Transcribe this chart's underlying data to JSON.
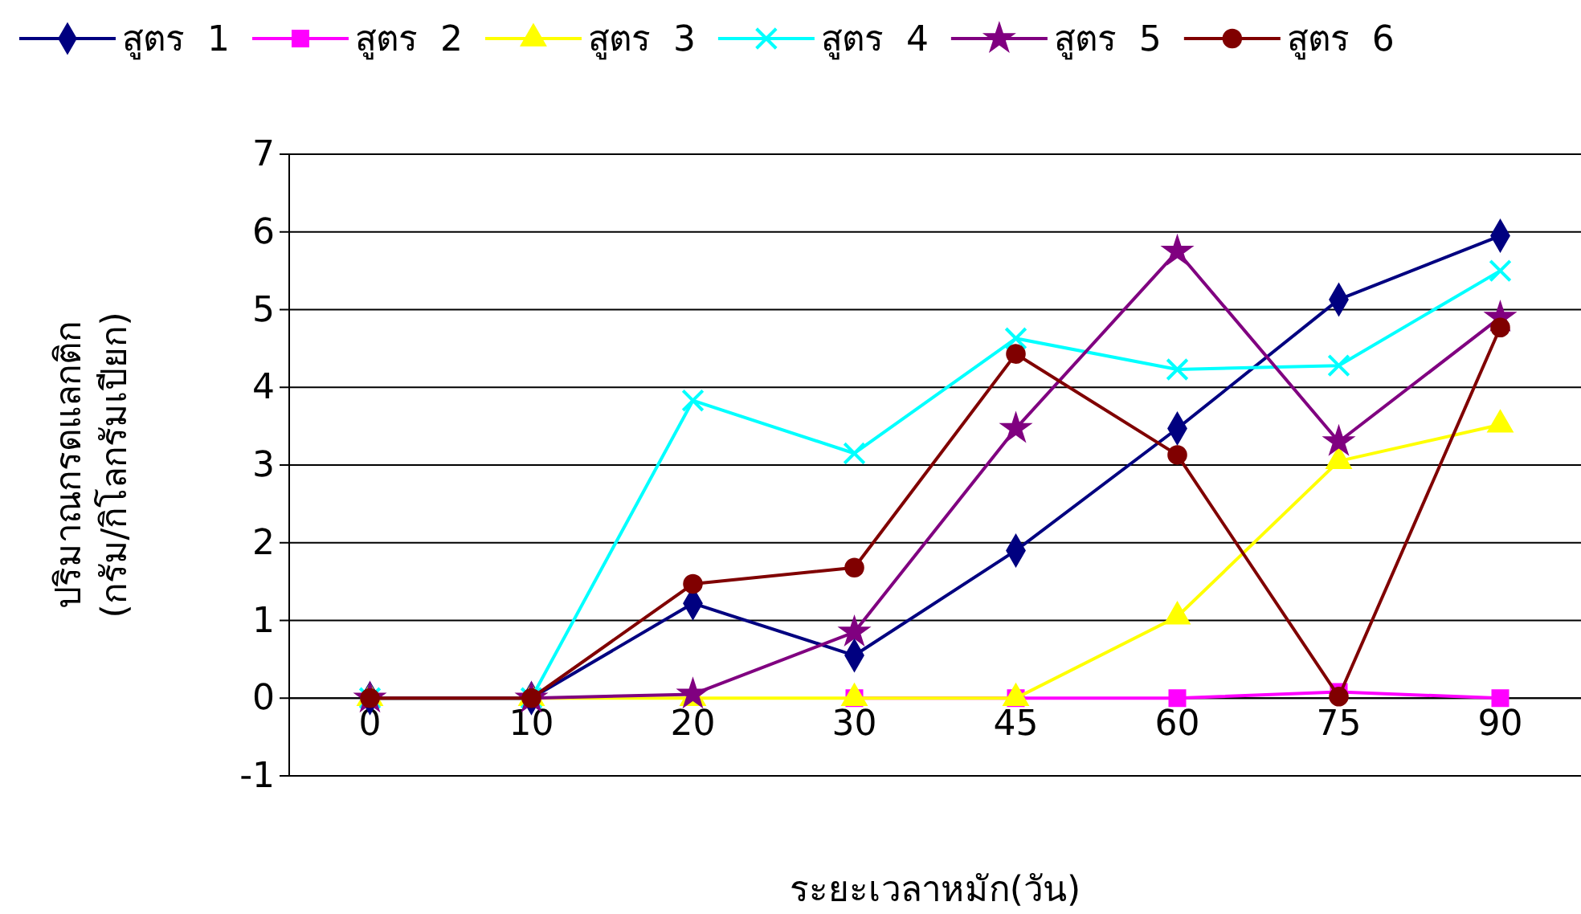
{
  "chart_data": {
    "type": "line",
    "xlabel": "ระยะเวลาหมัก(วัน)",
    "ylabel": "ปริมาณกรดแลกติก\n(กรัม/กิโลกรัมเปียก)",
    "categories": [
      "0",
      "10",
      "20",
      "30",
      "45",
      "60",
      "75",
      "90"
    ],
    "ylim": [
      -1,
      7
    ],
    "yticks": [
      -1,
      0,
      1,
      2,
      3,
      4,
      5,
      6,
      7
    ],
    "grid": "y",
    "legend": "top",
    "series": [
      {
        "name": "สูตร  1",
        "color": "#000080",
        "marker": "diamond",
        "values": [
          0,
          0,
          1.22,
          0.55,
          1.9,
          3.47,
          5.13,
          5.95
        ]
      },
      {
        "name": "สูตร  2",
        "color": "#ff00ff",
        "marker": "square",
        "values": [
          null,
          null,
          null,
          0,
          0,
          0,
          0.08,
          0
        ]
      },
      {
        "name": "สูตร  3",
        "color": "#ffff00",
        "marker": "triangle",
        "values": [
          0,
          0,
          0,
          0,
          0,
          1.05,
          3.05,
          3.52
        ]
      },
      {
        "name": "สูตร  4",
        "color": "#00ffff",
        "marker": "cross",
        "values": [
          0,
          0,
          3.83,
          3.15,
          4.63,
          4.23,
          4.28,
          5.5
        ]
      },
      {
        "name": "สูตร  5",
        "color": "#800080",
        "marker": "star",
        "values": [
          0,
          0,
          0.05,
          0.85,
          3.47,
          5.75,
          3.3,
          4.9
        ]
      },
      {
        "name": "สูตร  6",
        "color": "#800000",
        "marker": "circle",
        "values": [
          0,
          0,
          1.47,
          1.68,
          4.43,
          3.13,
          0.02,
          4.77
        ]
      }
    ]
  }
}
